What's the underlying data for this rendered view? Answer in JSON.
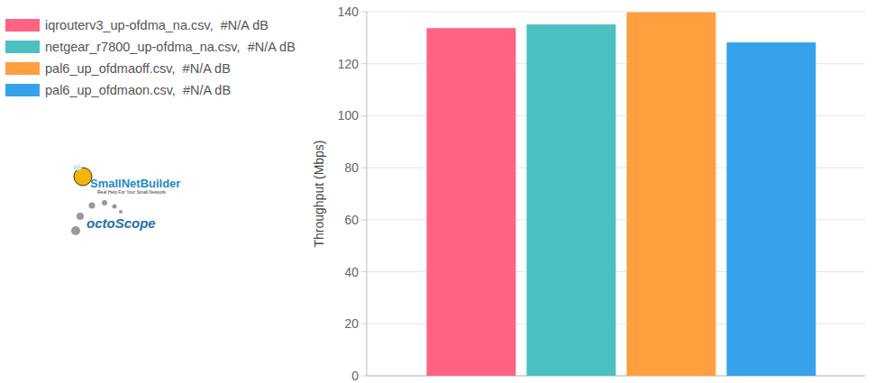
{
  "chart_data": {
    "type": "bar",
    "y_label": "Throughput (Mbps)",
    "annotations": [
      "SmallNetBuilder",
      "Real Help For Your Small Network",
      "octoScope"
    ],
    "categories": [
      null
    ],
    "series": [
      {
        "name": "iqrouterv3_up-ofdma_na.csv,  #N/A dB",
        "color": "#ff6384",
        "values": [
          133.7
        ]
      },
      {
        "name": "netgear_r7800_up-ofdma_na.csv,  #N/A dB",
        "color": "#4bc0c0",
        "values": [
          135.1
        ]
      },
      {
        "name": "pal6_up_ofdmaoff.csv,  #N/A dB",
        "color": "#ff9f40",
        "values": [
          139.8
        ]
      },
      {
        "name": "pal6_up_ofdmaon.csv,  #N/A dB",
        "color": "#36a2eb",
        "values": [
          128.2
        ]
      }
    ],
    "ylim": [
      0,
      140
    ],
    "yticks": [
      0,
      20,
      40,
      60,
      80,
      100,
      120,
      140
    ],
    "grid": true,
    "legend": "top-left"
  }
}
